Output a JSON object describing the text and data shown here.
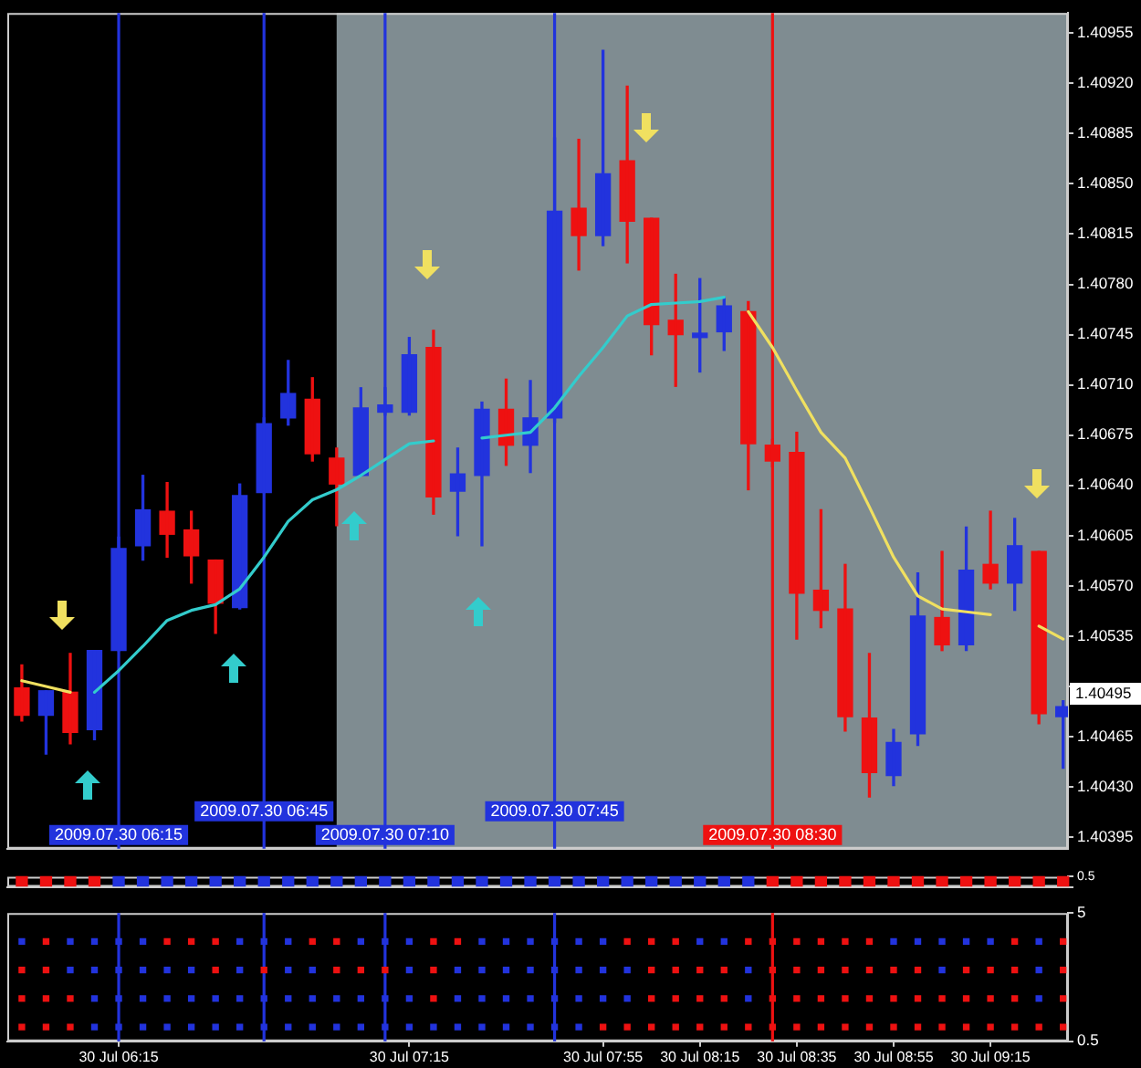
{
  "chart_data": [
    {
      "type": "candlestick",
      "x": [
        "2009-07-30T05:55",
        "2009-07-30T06:00",
        "2009-07-30T06:05",
        "2009-07-30T06:10",
        "2009-07-30T06:15",
        "2009-07-30T06:20",
        "2009-07-30T06:25",
        "2009-07-30T06:30",
        "2009-07-30T06:35",
        "2009-07-30T06:40",
        "2009-07-30T06:45",
        "2009-07-30T06:50",
        "2009-07-30T06:55",
        "2009-07-30T07:00",
        "2009-07-30T07:05",
        "2009-07-30T07:10",
        "2009-07-30T07:15",
        "2009-07-30T07:20",
        "2009-07-30T07:25",
        "2009-07-30T07:30",
        "2009-07-30T07:35",
        "2009-07-30T07:40",
        "2009-07-30T07:45",
        "2009-07-30T07:50",
        "2009-07-30T07:55",
        "2009-07-30T08:00",
        "2009-07-30T08:05",
        "2009-07-30T08:10",
        "2009-07-30T08:15",
        "2009-07-30T08:20",
        "2009-07-30T08:25",
        "2009-07-30T08:30",
        "2009-07-30T08:35",
        "2009-07-30T08:40",
        "2009-07-30T08:45",
        "2009-07-30T08:50",
        "2009-07-30T08:55",
        "2009-07-30T09:00",
        "2009-07-30T09:05",
        "2009-07-30T09:10",
        "2009-07-30T09:15",
        "2009-07-30T09:20",
        "2009-07-30T09:25",
        "2009-07-30T09:30"
      ],
      "series": [
        {
          "type": "candlestick",
          "ohlc": [
            [
              1.40499,
              1.40515,
              1.40476,
              1.4048
            ],
            [
              1.4048,
              1.40497,
              1.40453,
              1.40497
            ],
            [
              1.40496,
              1.40523,
              1.4046,
              1.40468
            ],
            [
              1.4047,
              1.40525,
              1.40463,
              1.40525
            ],
            [
              1.40525,
              1.40604,
              1.40525,
              1.40596
            ],
            [
              1.40598,
              1.40647,
              1.40588,
              1.40623
            ],
            [
              1.40622,
              1.40642,
              1.4059,
              1.40606
            ],
            [
              1.40609,
              1.40622,
              1.40572,
              1.40591
            ],
            [
              1.40588,
              1.40588,
              1.40537,
              1.40558
            ],
            [
              1.40555,
              1.40641,
              1.40554,
              1.40633
            ],
            [
              1.40635,
              1.40687,
              1.40635,
              1.40683
            ],
            [
              1.40687,
              1.40727,
              1.40682,
              1.40704
            ],
            [
              1.407,
              1.40715,
              1.40657,
              1.40662
            ],
            [
              1.40659,
              1.40666,
              1.40612,
              1.40641
            ],
            [
              1.40647,
              1.40708,
              1.40647,
              1.40694
            ],
            [
              1.40691,
              1.40708,
              1.40689,
              1.40696
            ],
            [
              1.40691,
              1.40743,
              1.40689,
              1.40731
            ],
            [
              1.40736,
              1.40748,
              1.4062,
              1.40632
            ],
            [
              1.40636,
              1.40666,
              1.40605,
              1.40648
            ],
            [
              1.40647,
              1.40698,
              1.40598,
              1.40693
            ],
            [
              1.40693,
              1.40714,
              1.40654,
              1.40668
            ],
            [
              1.40668,
              1.40713,
              1.40649,
              1.40687
            ],
            [
              1.40687,
              1.40882,
              1.40684,
              1.40831
            ],
            [
              1.40833,
              1.40881,
              1.4079,
              1.40814
            ],
            [
              1.40814,
              1.40943,
              1.40807,
              1.40857
            ],
            [
              1.40866,
              1.40918,
              1.40795,
              1.40824
            ],
            [
              1.40826,
              1.40826,
              1.40731,
              1.40752
            ],
            [
              1.40755,
              1.40787,
              1.40709,
              1.40745
            ],
            [
              1.40743,
              1.40784,
              1.40719,
              1.40746
            ],
            [
              1.40747,
              1.40771,
              1.40734,
              1.40765
            ],
            [
              1.40761,
              1.40768,
              1.40637,
              1.40669
            ],
            [
              1.40668,
              1.40672,
              1.40653,
              1.40657
            ],
            [
              1.40663,
              1.40677,
              1.40533,
              1.40565
            ],
            [
              1.40567,
              1.40623,
              1.40541,
              1.40553
            ],
            [
              1.40554,
              1.40585,
              1.40469,
              1.40479
            ],
            [
              1.40478,
              1.40523,
              1.40423,
              1.4044
            ],
            [
              1.40438,
              1.4047,
              1.40431,
              1.40461
            ],
            [
              1.40467,
              1.40579,
              1.40459,
              1.40549
            ],
            [
              1.40548,
              1.40594,
              1.40525,
              1.40529
            ],
            [
              1.40529,
              1.40611,
              1.40525,
              1.40581
            ],
            [
              1.40585,
              1.40622,
              1.40568,
              1.40572
            ],
            [
              1.40572,
              1.40617,
              1.40553,
              1.40598
            ],
            [
              1.40594,
              1.40594,
              1.40474,
              1.40481
            ],
            [
              1.40479,
              1.4049,
              1.40443,
              1.40486
            ]
          ],
          "colors": [
            "#ee1111",
            "#2233dd",
            "#ee1111",
            "#2233dd",
            "#2233dd",
            "#2233dd",
            "#ee1111",
            "#ee1111",
            "#ee1111",
            "#2233dd",
            "#2233dd",
            "#2233dd",
            "#ee1111",
            "#ee1111",
            "#2233dd",
            "#2233dd",
            "#2233dd",
            "#ee1111",
            "#2233dd",
            "#2233dd",
            "#ee1111",
            "#2233dd",
            "#2233dd",
            "#ee1111",
            "#2233dd",
            "#ee1111",
            "#ee1111",
            "#ee1111",
            "#2233dd",
            "#2233dd",
            "#ee1111",
            "#ee1111",
            "#ee1111",
            "#ee1111",
            "#ee1111",
            "#ee1111",
            "#2233dd",
            "#2233dd",
            "#ee1111",
            "#2233dd",
            "#ee1111",
            "#2233dd",
            "#ee1111",
            "#2233dd"
          ]
        },
        {
          "type": "line",
          "color": "#f0e060",
          "values": [
            1.40504,
            1.405,
            1.40496,
            null,
            null,
            null,
            null,
            null,
            null,
            null,
            null,
            null,
            null,
            null,
            null,
            null,
            null,
            null,
            null,
            null,
            null,
            null,
            null,
            null,
            null,
            null,
            null,
            null,
            null,
            null,
            1.40761,
            1.40736,
            1.40706,
            1.40677,
            1.40659,
            1.40625,
            1.4059,
            1.40563,
            1.40554,
            1.40552,
            1.4055,
            null,
            1.40542,
            1.40533
          ]
        },
        {
          "type": "line",
          "color": "#33cccc",
          "values": [
            null,
            null,
            null,
            1.40496,
            1.40511,
            1.40528,
            1.40546,
            1.40553,
            1.40557,
            1.40568,
            1.4059,
            1.40615,
            1.4063,
            1.40637,
            1.40647,
            1.40658,
            1.40669,
            1.40671,
            null,
            1.40673,
            1.40675,
            1.40677,
            1.40694,
            1.40716,
            1.40736,
            1.40758,
            1.40766,
            1.40767,
            1.40768,
            1.40771,
            null,
            null,
            null,
            null,
            null,
            null,
            null,
            null,
            null,
            null,
            null,
            null,
            null,
            null
          ]
        }
      ],
      "xlim": [
        "2009-07-30T05:52",
        "2009-07-30T09:31"
      ],
      "ylim": [
        1.40387,
        1.40969
      ],
      "yticks": [
        1.40395,
        {
          "value": 1.4043,
          "label": "1.40430"
        },
        1.40465,
        {
          "value": 1.405,
          "label": null
        },
        1.40535,
        {
          "value": 1.4057,
          "label": "1.40570"
        },
        1.40605,
        {
          "value": 1.4064,
          "label": "1.40640"
        },
        1.40675,
        {
          "value": 1.4071,
          "label": "1.40710"
        },
        1.40745,
        {
          "value": 1.4078,
          "label": "1.40780"
        },
        1.40815,
        {
          "value": 1.4085,
          "label": "1.40850"
        },
        1.40885,
        {
          "value": 1.4092,
          "label": "1.40920"
        },
        1.40955
      ],
      "bands": [
        {
          "axis": "x",
          "from": "2009-07-30T07:00",
          "to": "2009-07-30T09:31",
          "color": "#7f8c91"
        }
      ],
      "ref_lines": [
        {
          "axis": "x",
          "value": "2009-07-30T06:15",
          "label": "2009.07.30 06:15",
          "color": "#2233dd"
        },
        {
          "axis": "x",
          "value": "2009-07-30T06:45",
          "label": "2009.07.30 06:45",
          "color": "#2233dd"
        },
        {
          "axis": "x",
          "value": "2009-07-30T07:10",
          "label": "2009.07.30 07:10",
          "color": "#2233dd"
        },
        {
          "axis": "x",
          "value": "2009-07-30T07:45",
          "label": "2009.07.30 07:45",
          "color": "#2233dd"
        },
        {
          "axis": "x",
          "value": "2009-07-30T08:30",
          "label": "2009.07.30 08:30",
          "color": "#ee1111"
        }
      ],
      "annotations": [
        {
          "text": "1.40495",
          "y": 1.40495
        }
      ],
      "tick_labels": "y"
    },
    {
      "type": "bar",
      "x": [
        "2009-07-30T05:55",
        "2009-07-30T06:00",
        "2009-07-30T06:05",
        "2009-07-30T06:10",
        "2009-07-30T06:15",
        "2009-07-30T06:20",
        "2009-07-30T06:25",
        "2009-07-30T06:30",
        "2009-07-30T06:35",
        "2009-07-30T06:40",
        "2009-07-30T06:45",
        "2009-07-30T06:50",
        "2009-07-30T06:55",
        "2009-07-30T07:00",
        "2009-07-30T07:05",
        "2009-07-30T07:10",
        "2009-07-30T07:15",
        "2009-07-30T07:20",
        "2009-07-30T07:25",
        "2009-07-30T07:30",
        "2009-07-30T07:35",
        "2009-07-30T07:40",
        "2009-07-30T07:45",
        "2009-07-30T07:50",
        "2009-07-30T07:55",
        "2009-07-30T08:00",
        "2009-07-30T08:05",
        "2009-07-30T08:10",
        "2009-07-30T08:15",
        "2009-07-30T08:20",
        "2009-07-30T08:25",
        "2009-07-30T08:30",
        "2009-07-30T08:35",
        "2009-07-30T08:40",
        "2009-07-30T08:45",
        "2009-07-30T08:50",
        "2009-07-30T08:55",
        "2009-07-30T09:00",
        "2009-07-30T09:05",
        "2009-07-30T09:10",
        "2009-07-30T09:15",
        "2009-07-30T09:20",
        "2009-07-30T09:25",
        "2009-07-30T09:30"
      ],
      "values": [
        0.5,
        0.5,
        0.5,
        0.5,
        0.5,
        0.5,
        0.5,
        0.5,
        0.5,
        0.5,
        0.5,
        0.5,
        0.5,
        0.5,
        0.5,
        0.5,
        0.5,
        0.5,
        0.5,
        0.5,
        0.5,
        0.5,
        0.5,
        0.5,
        0.5,
        0.5,
        0.5,
        0.5,
        0.5,
        0.5,
        0.5,
        0.5,
        0.5,
        0.5,
        0.5,
        0.5,
        0.5,
        0.5,
        0.5,
        0.5,
        0.5,
        0.5,
        0.5,
        0.5
      ],
      "colors": [
        "#ee1111",
        "#ee1111",
        "#ee1111",
        "#ee1111",
        "#2233dd",
        "#2233dd",
        "#2233dd",
        "#2233dd",
        "#2233dd",
        "#2233dd",
        "#2233dd",
        "#2233dd",
        "#2233dd",
        "#2233dd",
        "#2233dd",
        "#2233dd",
        "#2233dd",
        "#2233dd",
        "#2233dd",
        "#2233dd",
        "#2233dd",
        "#2233dd",
        "#2233dd",
        "#2233dd",
        "#2233dd",
        "#2233dd",
        "#2233dd",
        "#2233dd",
        "#2233dd",
        "#2233dd",
        "#2233dd",
        "#ee1111",
        "#ee1111",
        "#ee1111",
        "#ee1111",
        "#ee1111",
        "#ee1111",
        "#ee1111",
        "#ee1111",
        "#ee1111",
        "#ee1111",
        "#ee1111",
        "#ee1111",
        "#ee1111"
      ],
      "xlim": [
        "2009-07-30T05:52",
        "2009-07-30T09:31"
      ],
      "ylim": [
        0,
        0.5
      ],
      "yticks": [
        {
          "value": 0,
          "label": null
        },
        0.5
      ],
      "tick_labels": "y"
    },
    {
      "type": "scatter",
      "x": [
        "2009-07-30T05:55",
        "2009-07-30T06:00",
        "2009-07-30T06:05",
        "2009-07-30T06:10",
        "2009-07-30T06:15",
        "2009-07-30T06:20",
        "2009-07-30T06:25",
        "2009-07-30T06:30",
        "2009-07-30T06:35",
        "2009-07-30T06:40",
        "2009-07-30T06:45",
        "2009-07-30T06:50",
        "2009-07-30T06:55",
        "2009-07-30T07:00",
        "2009-07-30T07:05",
        "2009-07-30T07:10",
        "2009-07-30T07:15",
        "2009-07-30T07:20",
        "2009-07-30T07:25",
        "2009-07-30T07:30",
        "2009-07-30T07:35",
        "2009-07-30T07:40",
        "2009-07-30T07:45",
        "2009-07-30T07:50",
        "2009-07-30T07:55",
        "2009-07-30T08:00",
        "2009-07-30T08:05",
        "2009-07-30T08:10",
        "2009-07-30T08:15",
        "2009-07-30T08:20",
        "2009-07-30T08:25",
        "2009-07-30T08:30",
        "2009-07-30T08:35",
        "2009-07-30T08:40",
        "2009-07-30T08:45",
        "2009-07-30T08:50",
        "2009-07-30T08:55",
        "2009-07-30T09:00",
        "2009-07-30T09:05",
        "2009-07-30T09:10",
        "2009-07-30T09:15",
        "2009-07-30T09:20",
        "2009-07-30T09:25",
        "2009-07-30T09:30"
      ],
      "series": [
        {
          "values": [
            4,
            4,
            4,
            4,
            4,
            4,
            4,
            4,
            4,
            4,
            4,
            4,
            4,
            4,
            4,
            4,
            4,
            4,
            4,
            4,
            4,
            4,
            4,
            4,
            4,
            4,
            4,
            4,
            4,
            4,
            4,
            4,
            4,
            4,
            4,
            4,
            4,
            4,
            4,
            4,
            4,
            4,
            4,
            4
          ],
          "colors": [
            "#2233dd",
            "#ee1111",
            "#2233dd",
            "#2233dd",
            "#2233dd",
            "#2233dd",
            "#ee1111",
            "#ee1111",
            "#ee1111",
            "#2233dd",
            "#2233dd",
            "#2233dd",
            "#ee1111",
            "#ee1111",
            "#2233dd",
            "#2233dd",
            "#2233dd",
            "#ee1111",
            "#ee1111",
            "#2233dd",
            "#2233dd",
            "#2233dd",
            "#2233dd",
            "#2233dd",
            "#2233dd",
            "#ee1111",
            "#ee1111",
            "#ee1111",
            "#2233dd",
            "#2233dd",
            "#ee1111",
            "#ee1111",
            "#ee1111",
            "#ee1111",
            "#ee1111",
            "#ee1111",
            "#2233dd",
            "#2233dd",
            "#2233dd",
            "#2233dd",
            "#2233dd",
            "#ee1111",
            "#2233dd",
            "#ee1111"
          ]
        },
        {
          "values": [
            3,
            3,
            3,
            3,
            3,
            3,
            3,
            3,
            3,
            3,
            3,
            3,
            3,
            3,
            3,
            3,
            3,
            3,
            3,
            3,
            3,
            3,
            3,
            3,
            3,
            3,
            3,
            3,
            3,
            3,
            3,
            3,
            3,
            3,
            3,
            3,
            3,
            3,
            3,
            3,
            3,
            3,
            3,
            3
          ],
          "colors": [
            "#ee1111",
            "#ee1111",
            "#2233dd",
            "#2233dd",
            "#2233dd",
            "#2233dd",
            "#2233dd",
            "#2233dd",
            "#ee1111",
            "#2233dd",
            "#ee1111",
            "#2233dd",
            "#2233dd",
            "#ee1111",
            "#ee1111",
            "#ee1111",
            "#2233dd",
            "#ee1111",
            "#2233dd",
            "#2233dd",
            "#2233dd",
            "#2233dd",
            "#2233dd",
            "#2233dd",
            "#2233dd",
            "#2233dd",
            "#ee1111",
            "#ee1111",
            "#ee1111",
            "#ee1111",
            "#2233dd",
            "#ee1111",
            "#ee1111",
            "#ee1111",
            "#ee1111",
            "#ee1111",
            "#ee1111",
            "#ee1111",
            "#2233dd",
            "#ee1111",
            "#ee1111",
            "#ee1111",
            "#2233dd",
            "#ee1111"
          ]
        },
        {
          "values": [
            2,
            2,
            2,
            2,
            2,
            2,
            2,
            2,
            2,
            2,
            2,
            2,
            2,
            2,
            2,
            2,
            2,
            2,
            2,
            2,
            2,
            2,
            2,
            2,
            2,
            2,
            2,
            2,
            2,
            2,
            2,
            2,
            2,
            2,
            2,
            2,
            2,
            2,
            2,
            2,
            2,
            2,
            2,
            2
          ],
          "colors": [
            "#ee1111",
            "#ee1111",
            "#ee1111",
            "#2233dd",
            "#2233dd",
            "#2233dd",
            "#2233dd",
            "#2233dd",
            "#2233dd",
            "#2233dd",
            "#2233dd",
            "#2233dd",
            "#2233dd",
            "#2233dd",
            "#2233dd",
            "#2233dd",
            "#2233dd",
            "#ee1111",
            "#2233dd",
            "#2233dd",
            "#2233dd",
            "#2233dd",
            "#2233dd",
            "#2233dd",
            "#2233dd",
            "#2233dd",
            "#ee1111",
            "#ee1111",
            "#ee1111",
            "#ee1111",
            "#2233dd",
            "#ee1111",
            "#ee1111",
            "#ee1111",
            "#ee1111",
            "#ee1111",
            "#ee1111",
            "#ee1111",
            "#ee1111",
            "#ee1111",
            "#ee1111",
            "#ee1111",
            "#2233dd",
            "#ee1111"
          ]
        },
        {
          "values": [
            1,
            1,
            1,
            1,
            1,
            1,
            1,
            1,
            1,
            1,
            1,
            1,
            1,
            1,
            1,
            1,
            1,
            1,
            1,
            1,
            1,
            1,
            1,
            1,
            1,
            1,
            1,
            1,
            1,
            1,
            1,
            1,
            1,
            1,
            1,
            1,
            1,
            1,
            1,
            1,
            1,
            1,
            1,
            1
          ],
          "colors": [
            "#ee1111",
            "#ee1111",
            "#ee1111",
            "#2233dd",
            "#2233dd",
            "#2233dd",
            "#2233dd",
            "#2233dd",
            "#2233dd",
            "#2233dd",
            "#2233dd",
            "#2233dd",
            "#2233dd",
            "#2233dd",
            "#2233dd",
            "#2233dd",
            "#2233dd",
            "#2233dd",
            "#2233dd",
            "#2233dd",
            "#2233dd",
            "#2233dd",
            "#2233dd",
            "#2233dd",
            "#ee1111",
            "#ee1111",
            "#ee1111",
            "#ee1111",
            "#ee1111",
            "#ee1111",
            "#ee1111",
            "#ee1111",
            "#ee1111",
            "#ee1111",
            "#ee1111",
            "#ee1111",
            "#ee1111",
            "#ee1111",
            "#ee1111",
            "#ee1111",
            "#ee1111",
            "#ee1111",
            "#ee1111",
            "#ee1111"
          ]
        }
      ],
      "marker": "square",
      "xlim": [
        "2009-07-30T05:52",
        "2009-07-30T09:31"
      ],
      "ylim": [
        0.5,
        5
      ],
      "yticks": [
        0.5,
        5
      ],
      "xticks": [
        {
          "value": "2009-07-30T06:15",
          "label": "30 Jul 06:15"
        },
        {
          "value": "2009-07-30T07:15",
          "label": "30 Jul 07:15"
        },
        {
          "value": "2009-07-30T07:55",
          "label": "30 Jul 07:55"
        },
        {
          "value": "2009-07-30T08:15",
          "label": "30 Jul 08:15"
        },
        {
          "value": "2009-07-30T08:35",
          "label": "30 Jul 08:35"
        },
        {
          "value": "2009-07-30T08:55",
          "label": "30 Jul 08:55"
        },
        {
          "value": "2009-07-30T09:15",
          "label": "30 Jul 09:15"
        }
      ],
      "ref_lines": [
        {
          "axis": "x",
          "value": "2009-07-30T06:15",
          "color": "#2233dd"
        },
        {
          "axis": "x",
          "value": "2009-07-30T06:45",
          "color": "#2233dd"
        },
        {
          "axis": "x",
          "value": "2009-07-30T07:10",
          "color": "#2233dd"
        },
        {
          "axis": "x",
          "value": "2009-07-30T07:45",
          "color": "#2233dd"
        },
        {
          "axis": "x",
          "value": "2009-07-30T08:30",
          "color": "#ee1111"
        }
      ]
    }
  ]
}
